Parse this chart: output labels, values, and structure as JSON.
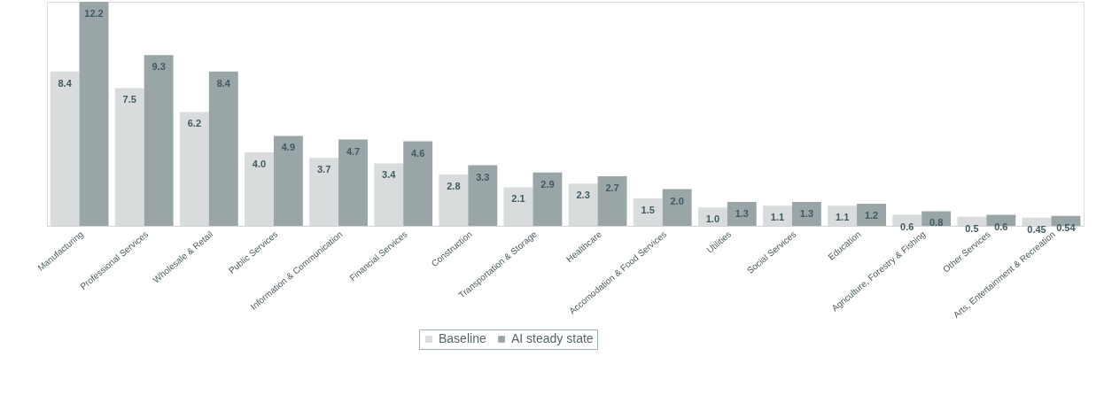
{
  "chart_data": {
    "type": "bar",
    "categories": [
      "Manufacturing",
      "Professional Services",
      "Wholesale & Retail",
      "Public Services",
      "Information & Communication",
      "Financial Services",
      "Construction",
      "Transportation & Storage",
      "Healthcare",
      "Accomodation & Food Services",
      "Utilities",
      "Social Services",
      "Education",
      "Agriculture, Forestry & Fishing",
      "Other Services",
      "Arts, Entertainment & Recreation"
    ],
    "series": [
      {
        "name": "Baseline",
        "color": "#d9dcdd",
        "values": [
          8.4,
          7.5,
          6.2,
          4.0,
          3.7,
          3.4,
          2.8,
          2.1,
          2.3,
          1.5,
          1.0,
          1.1,
          1.1,
          0.6,
          0.5,
          0.45
        ],
        "value_labels": [
          "8.4",
          "7.5",
          "6.2",
          "4.0",
          "3.7",
          "3.4",
          "2.8",
          "2.1",
          "2.3",
          "1.5",
          "1.0",
          "1.1",
          "1.1",
          "0.6",
          "0.5",
          "0.45"
        ]
      },
      {
        "name": "AI steady state",
        "color": "#9aa5a8",
        "values": [
          12.2,
          9.3,
          8.4,
          4.9,
          4.7,
          4.6,
          3.3,
          2.9,
          2.7,
          2.0,
          1.3,
          1.3,
          1.2,
          0.8,
          0.6,
          0.54
        ],
        "value_labels": [
          "12.2",
          "9.3",
          "8.4",
          "4.9",
          "4.7",
          "4.6",
          "3.3",
          "2.9",
          "2.7",
          "2.0",
          "1.3",
          "1.3",
          "1.2",
          "0.8",
          "0.6",
          "0.54"
        ]
      }
    ],
    "ylim": [
      0,
      12.2
    ],
    "legend": "bottom",
    "grid": false
  }
}
